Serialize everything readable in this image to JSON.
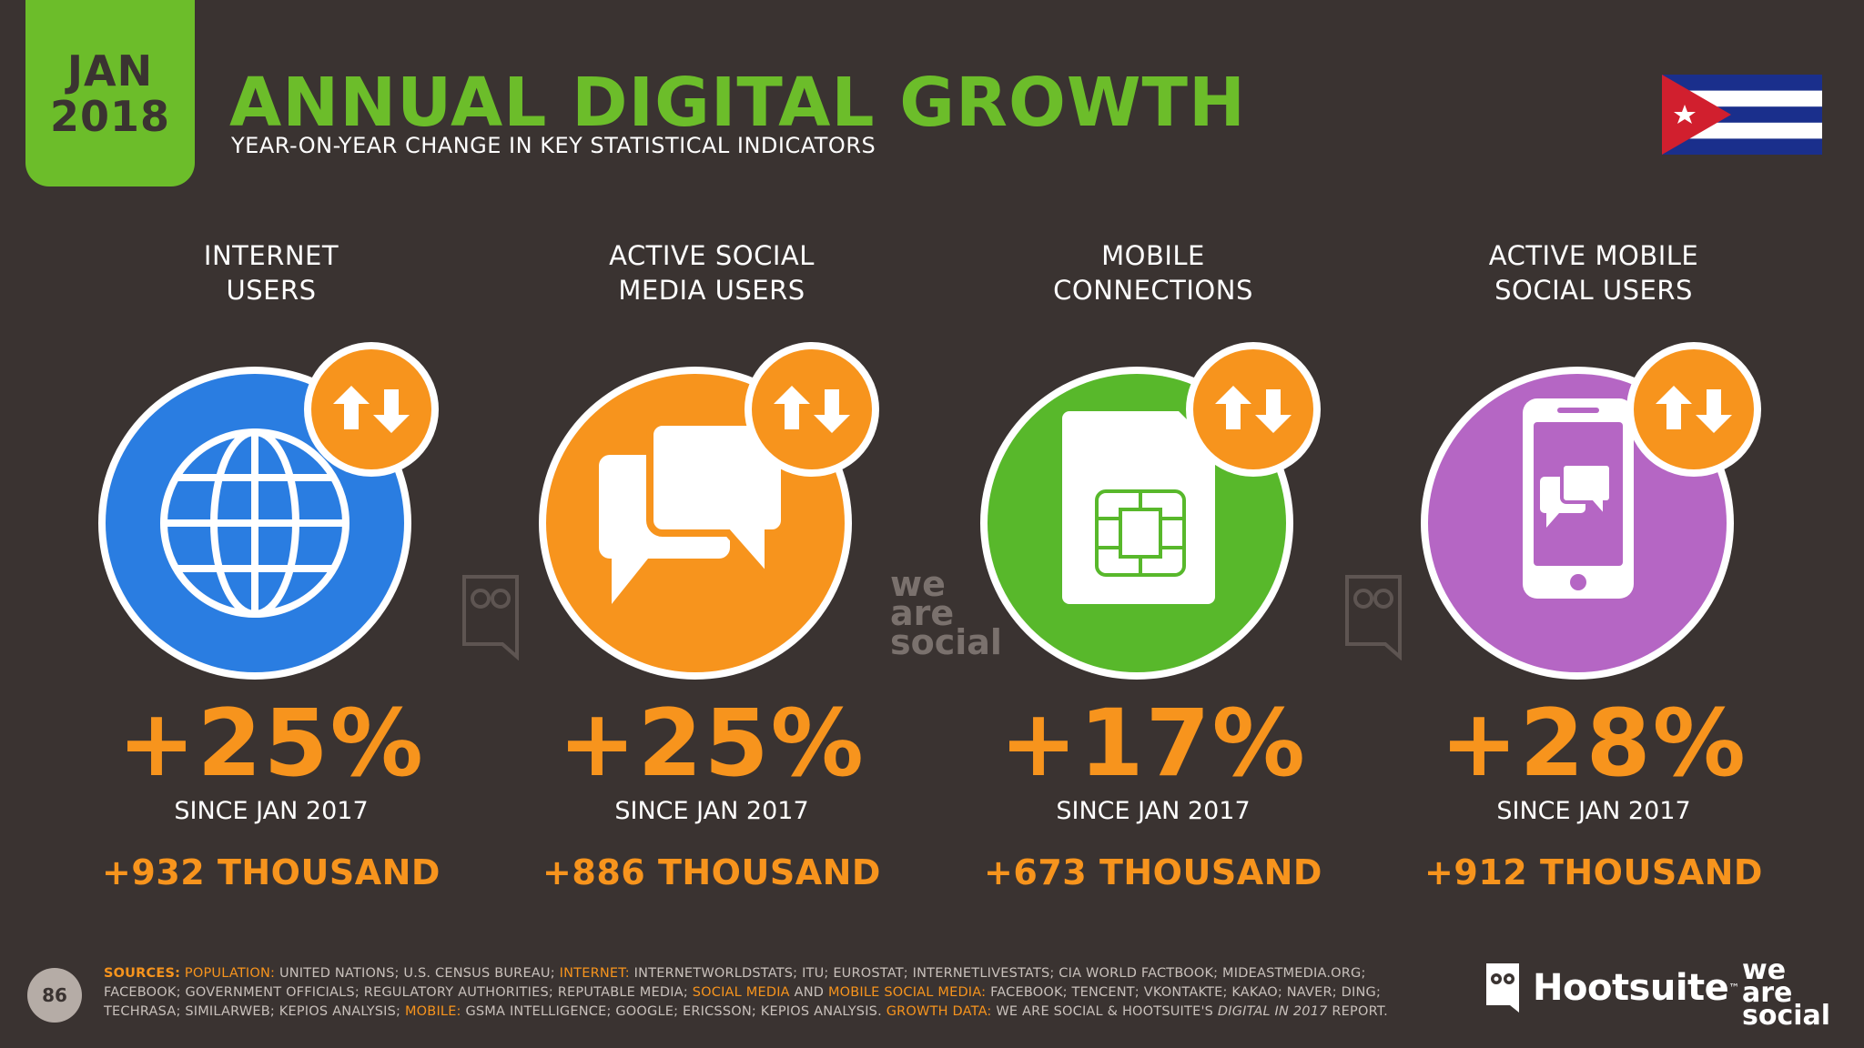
{
  "header": {
    "date_month": "JAN",
    "date_year": "2018",
    "title": "ANNUAL DIGITAL GROWTH",
    "subtitle": "YEAR-ON-YEAR CHANGE IN KEY STATISTICAL INDICATORS",
    "flag_icon": "cuba-flag-icon"
  },
  "colors": {
    "background": "#3a3331",
    "accent_green": "#6cbd2a",
    "accent_orange": "#f7941d",
    "internet_blue": "#2a7de1",
    "social_orange": "#f7941d",
    "mobile_green": "#58b82b",
    "mobile_social_purple": "#b566c4"
  },
  "metrics": [
    {
      "label_line1": "INTERNET",
      "label_line2": "USERS",
      "icon": "globe-icon",
      "percent": "+25%",
      "since": "SINCE JAN 2017",
      "absolute": "+932 THOUSAND"
    },
    {
      "label_line1": "ACTIVE SOCIAL",
      "label_line2": "MEDIA USERS",
      "icon": "chat-bubbles-icon",
      "percent": "+25%",
      "since": "SINCE JAN 2017",
      "absolute": "+886 THOUSAND"
    },
    {
      "label_line1": "MOBILE",
      "label_line2": "CONNECTIONS",
      "icon": "sim-card-icon",
      "percent": "+17%",
      "since": "SINCE JAN 2017",
      "absolute": "+673 THOUSAND"
    },
    {
      "label_line1": "ACTIVE MOBILE",
      "label_line2": "SOCIAL USERS",
      "icon": "smartphone-chat-icon",
      "percent": "+28%",
      "since": "SINCE JAN 2017",
      "absolute": "+912 THOUSAND"
    }
  ],
  "growth_badge_icon": "up-down-arrows-icon",
  "watermark": {
    "line1": "we",
    "line2": "are",
    "line3": "social"
  },
  "footer": {
    "page_number": "86",
    "sources_label": "SOURCES:",
    "population_label": "POPULATION:",
    "population_text": "UNITED NATIONS; U.S. CENSUS BUREAU;",
    "internet_label": "INTERNET:",
    "internet_text": "INTERNETWORLDSTATS; ITU; EUROSTAT; INTERNETLIVESTATS; CIA WORLD FACTBOOK; MIDEASTMEDIA.ORG; FACEBOOK; GOVERNMENT OFFICIALS; REGULATORY AUTHORITIES; REPUTABLE MEDIA;",
    "social_label": "SOCIAL MEDIA",
    "and_text": "AND",
    "mobile_social_label": "MOBILE SOCIAL MEDIA:",
    "social_text": "FACEBOOK; TENCENT; VKONTAKTE; KAKAO; NAVER; DING; TECHRASA; SIMILARWEB; KEPIOS ANALYSIS;",
    "mobile_label": "MOBILE:",
    "mobile_text": "GSMA INTELLIGENCE; GOOGLE; ERICSSON; KEPIOS ANALYSIS.",
    "growth_label": "GROWTH DATA:",
    "growth_text": "WE ARE SOCIAL & HOOTSUITE'S",
    "growth_report_italic": "DIGITAL IN 2017",
    "growth_text_end": "REPORT.",
    "hootsuite": "Hootsuite",
    "tm": "™",
    "was_line1": "we",
    "was_line2": "are",
    "was_line3": "social"
  }
}
